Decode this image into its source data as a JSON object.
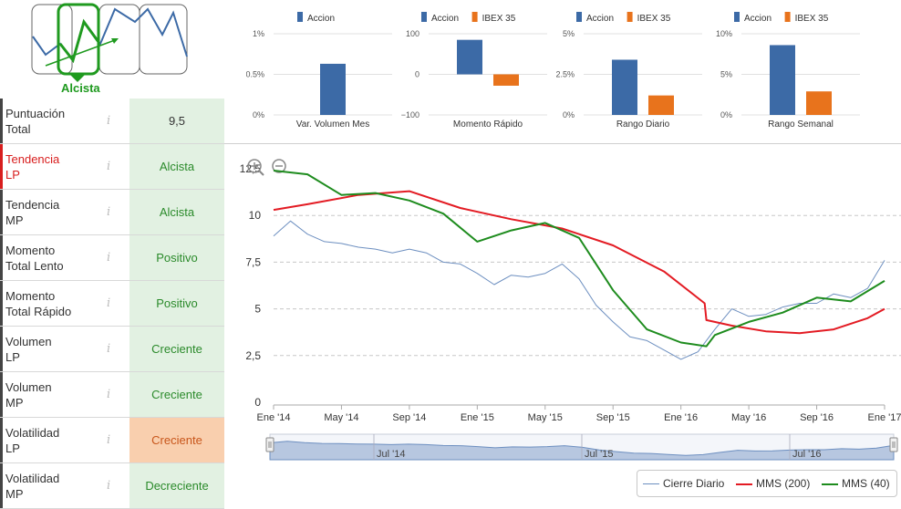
{
  "trend": {
    "label": "Alcista"
  },
  "scores": [
    {
      "label": [
        "Puntuación",
        "Total"
      ],
      "value": "9,5",
      "style": "neutral"
    },
    {
      "label": [
        "Tendencia",
        "LP"
      ],
      "value": "Alcista",
      "style": "red"
    },
    {
      "label": [
        "Tendencia",
        "MP"
      ],
      "value": "Alcista",
      "style": ""
    },
    {
      "label": [
        "Momento",
        "Total Lento"
      ],
      "value": "Positivo",
      "style": ""
    },
    {
      "label": [
        "Momento",
        "Total Rápido"
      ],
      "value": "Positivo",
      "style": ""
    },
    {
      "label": [
        "Volumen",
        "LP"
      ],
      "value": "Creciente",
      "style": ""
    },
    {
      "label": [
        "Volumen",
        "MP"
      ],
      "value": "Creciente",
      "style": ""
    },
    {
      "label": [
        "Volatilidad",
        "LP"
      ],
      "value": "Creciente",
      "style": "warn"
    },
    {
      "label": [
        "Volatilidad",
        "MP"
      ],
      "value": "Decreciente",
      "style": ""
    }
  ],
  "colors": {
    "accion": "#3c6aa6",
    "ibex": "#e8731c",
    "cierre": "#6d8fc0",
    "mms200": "#e31b23",
    "mms40": "#1e8c1e",
    "green": "#1f9a1f"
  },
  "chart_data": [
    {
      "type": "bar",
      "xlabel": "Var. Volumen Mes",
      "legend": [
        "Accion"
      ],
      "yticks": [
        "1%",
        "0.5%",
        "0%"
      ],
      "ylim": [
        0,
        1
      ],
      "values": [
        0.63
      ]
    },
    {
      "type": "bar",
      "xlabel": "Momento Rápido",
      "legend": [
        "Accion",
        "IBEX 35"
      ],
      "yticks": [
        "100",
        "0",
        "−100"
      ],
      "ylim": [
        -100,
        100
      ],
      "values": [
        85,
        -28
      ]
    },
    {
      "type": "bar",
      "xlabel": "Rango Diario",
      "legend": [
        "Accion",
        "IBEX 35"
      ],
      "yticks": [
        "5%",
        "2.5%",
        "0%"
      ],
      "ylim": [
        0,
        5
      ],
      "values": [
        3.4,
        1.2
      ]
    },
    {
      "type": "bar",
      "xlabel": "Rango Semanal",
      "legend": [
        "Accion",
        "IBEX 35"
      ],
      "yticks": [
        "10%",
        "5%",
        "0%"
      ],
      "ylim": [
        0,
        10
      ],
      "values": [
        8.6,
        2.9
      ]
    },
    {
      "type": "line",
      "x_ticks": [
        "Ene '14",
        "May '14",
        "Sep '14",
        "Ene '15",
        "May '15",
        "Sep '15",
        "Ene '16",
        "May '16",
        "Sep '16",
        "Ene '17"
      ],
      "y_ticks": [
        "12,5",
        "10",
        "7,5",
        "5",
        "2,5",
        "0"
      ],
      "ylim": [
        0,
        12.5
      ],
      "navigator_ticks": [
        "Jul '14",
        "Jul '15",
        "Jul '16"
      ],
      "series": [
        {
          "name": "Cierre Diario",
          "x": [
            0,
            1,
            2,
            3,
            4,
            5,
            6,
            7,
            8,
            9,
            10,
            11,
            12,
            13,
            14,
            15,
            16,
            17,
            18,
            19,
            20,
            21,
            22,
            23,
            24,
            25,
            26,
            27,
            28,
            29,
            30,
            31,
            32,
            33,
            34,
            35,
            36
          ],
          "y": [
            8.9,
            9.7,
            9.0,
            8.6,
            8.5,
            8.3,
            8.2,
            8.0,
            8.2,
            8.0,
            7.5,
            7.4,
            6.9,
            6.3,
            6.8,
            6.7,
            6.9,
            7.4,
            6.6,
            5.2,
            4.3,
            3.5,
            3.3,
            2.8,
            2.3,
            2.7,
            3.9,
            5.0,
            4.6,
            4.7,
            5.1,
            5.3,
            5.3,
            5.8,
            5.6,
            6.1,
            7.6
          ]
        },
        {
          "name": "MMS (200)",
          "x": [
            0,
            2,
            5,
            8,
            11,
            14,
            17,
            20,
            23,
            25.4,
            25.5,
            27,
            29,
            31,
            33,
            35,
            36
          ],
          "y": [
            10.3,
            10.6,
            11.1,
            11.3,
            10.4,
            9.8,
            9.3,
            8.4,
            7.0,
            5.3,
            4.4,
            4.1,
            3.8,
            3.7,
            3.9,
            4.5,
            5.0
          ]
        },
        {
          "name": "MMS (40)",
          "x": [
            0,
            2,
            4,
            6,
            8,
            10,
            12,
            14,
            16,
            18,
            20,
            22,
            24,
            25.5,
            26,
            28,
            30,
            32,
            34,
            36
          ],
          "y": [
            12.4,
            12.2,
            11.1,
            11.2,
            10.8,
            10.1,
            8.6,
            9.2,
            9.6,
            8.8,
            6.0,
            3.9,
            3.2,
            3.0,
            3.6,
            4.3,
            4.8,
            5.6,
            5.4,
            6.5
          ]
        }
      ]
    }
  ],
  "legend": {
    "cierre": "Cierre Diario",
    "mms200": "MMS (200)",
    "mms40": "MMS (40)"
  }
}
